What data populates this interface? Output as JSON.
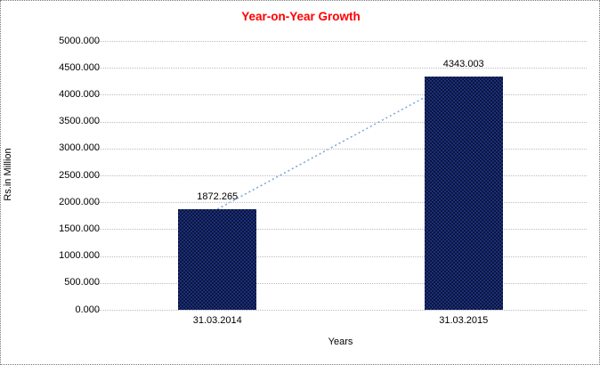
{
  "chart": {
    "title": "Year-on-Year Growth",
    "title_color": "#FF0000",
    "y_axis_title": "Rs.in Million",
    "x_axis_title": "Years",
    "background_color": "#FFFFFF",
    "bar_color": "#14235F",
    "gridline_color": "#BDBDBD",
    "trendline_color": "#7DA7D9",
    "border_style": "dotted"
  },
  "chart_data": {
    "type": "bar",
    "title": "Year-on-Year Growth",
    "xlabel": "Years",
    "ylabel": "Rs.in Million",
    "categories": [
      "31.03.2014",
      "31.03.2015"
    ],
    "values": [
      1872.265,
      4343.003
    ],
    "data_labels": [
      "1872.265",
      "4343.003"
    ],
    "ylim": [
      0,
      5000
    ],
    "ytick_step": 500,
    "ytick_labels": [
      "0.000",
      "500.000",
      "1000.000",
      "1500.000",
      "2000.000",
      "2500.000",
      "3000.000",
      "3500.000",
      "4000.000",
      "4500.000",
      "5000.000"
    ],
    "grid": "horizontal-dotted",
    "legend": "none",
    "trendline": {
      "style": "dotted",
      "color": "#7DA7D9",
      "from_value": 1872.265,
      "to_value": 4343.003
    }
  }
}
